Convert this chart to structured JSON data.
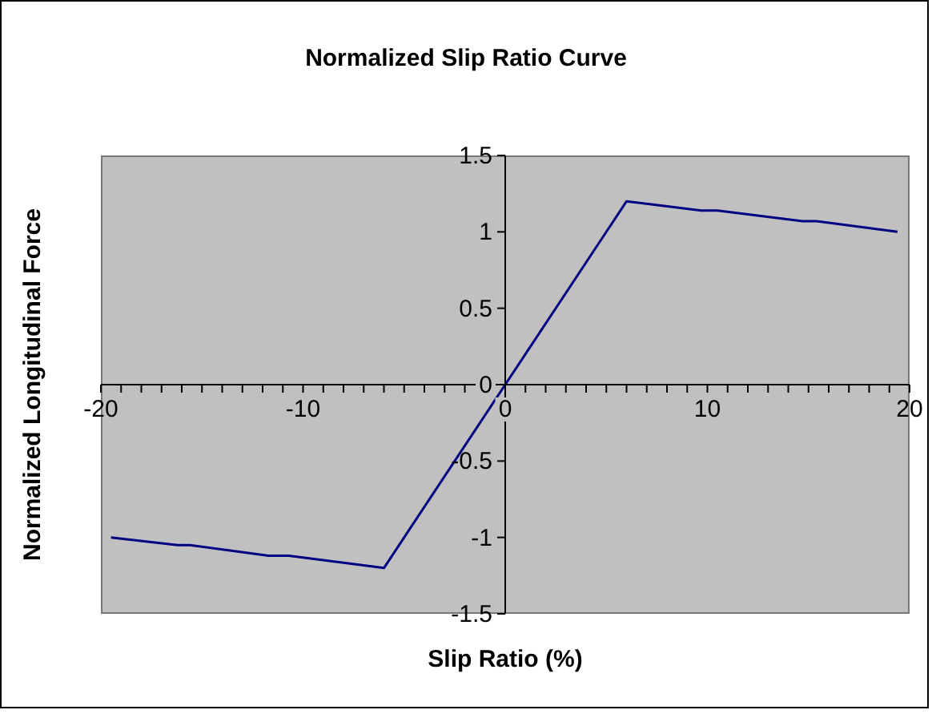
{
  "chart_data": {
    "type": "line",
    "title": "Normalized Slip Ratio Curve",
    "xlabel": "Slip Ratio (%)",
    "ylabel": "Normalized Longitudinal Force",
    "x": [
      -19.5,
      -16.2,
      -15.6,
      -11.7,
      -10.7,
      -6,
      0,
      1,
      6,
      9.7,
      10.5,
      14.7,
      15.4,
      19.4
    ],
    "series": [
      {
        "color": "#000080",
        "values": [
          -1,
          -1.05,
          -1.05,
          -1.12,
          -1.12,
          -1.2,
          0,
          0.2,
          1.2,
          1.14,
          1.14,
          1.07,
          1.07,
          1
        ]
      }
    ],
    "xlim": [
      -20,
      20
    ],
    "xticks": [
      -20,
      {
        "value": -19,
        "label": null
      },
      {
        "value": -18,
        "label": null
      },
      {
        "value": -17,
        "label": null
      },
      {
        "value": -16,
        "label": null
      },
      {
        "value": -15,
        "label": null
      },
      {
        "value": -14,
        "label": null
      },
      {
        "value": -13,
        "label": null
      },
      {
        "value": -12,
        "label": null
      },
      {
        "value": -11,
        "label": null
      },
      -10,
      {
        "value": -9,
        "label": null
      },
      {
        "value": -8,
        "label": null
      },
      {
        "value": -7,
        "label": null
      },
      {
        "value": -6,
        "label": null
      },
      {
        "value": -5,
        "label": null
      },
      {
        "value": -4,
        "label": null
      },
      {
        "value": -3,
        "label": null
      },
      {
        "value": -2,
        "label": null
      },
      {
        "value": -1,
        "label": null
      },
      0,
      {
        "value": 1,
        "label": null
      },
      {
        "value": 2,
        "label": null
      },
      {
        "value": 3,
        "label": null
      },
      {
        "value": 4,
        "label": null
      },
      {
        "value": 5,
        "label": null
      },
      {
        "value": 6,
        "label": null
      },
      {
        "value": 7,
        "label": null
      },
      {
        "value": 8,
        "label": null
      },
      {
        "value": 9,
        "label": null
      },
      10,
      {
        "value": 11,
        "label": null
      },
      {
        "value": 12,
        "label": null
      },
      {
        "value": 13,
        "label": null
      },
      {
        "value": 14,
        "label": null
      },
      {
        "value": 15,
        "label": null
      },
      {
        "value": 16,
        "label": null
      },
      {
        "value": 17,
        "label": null
      },
      {
        "value": 18,
        "label": null
      },
      {
        "value": 19,
        "label": null
      },
      20
    ],
    "ylim": [
      -1.5,
      1.5
    ],
    "yticks": [
      -1.5,
      -1,
      -0.5,
      0,
      0.5,
      1,
      1.5
    ],
    "marker": "none",
    "line_style": "solid"
  }
}
